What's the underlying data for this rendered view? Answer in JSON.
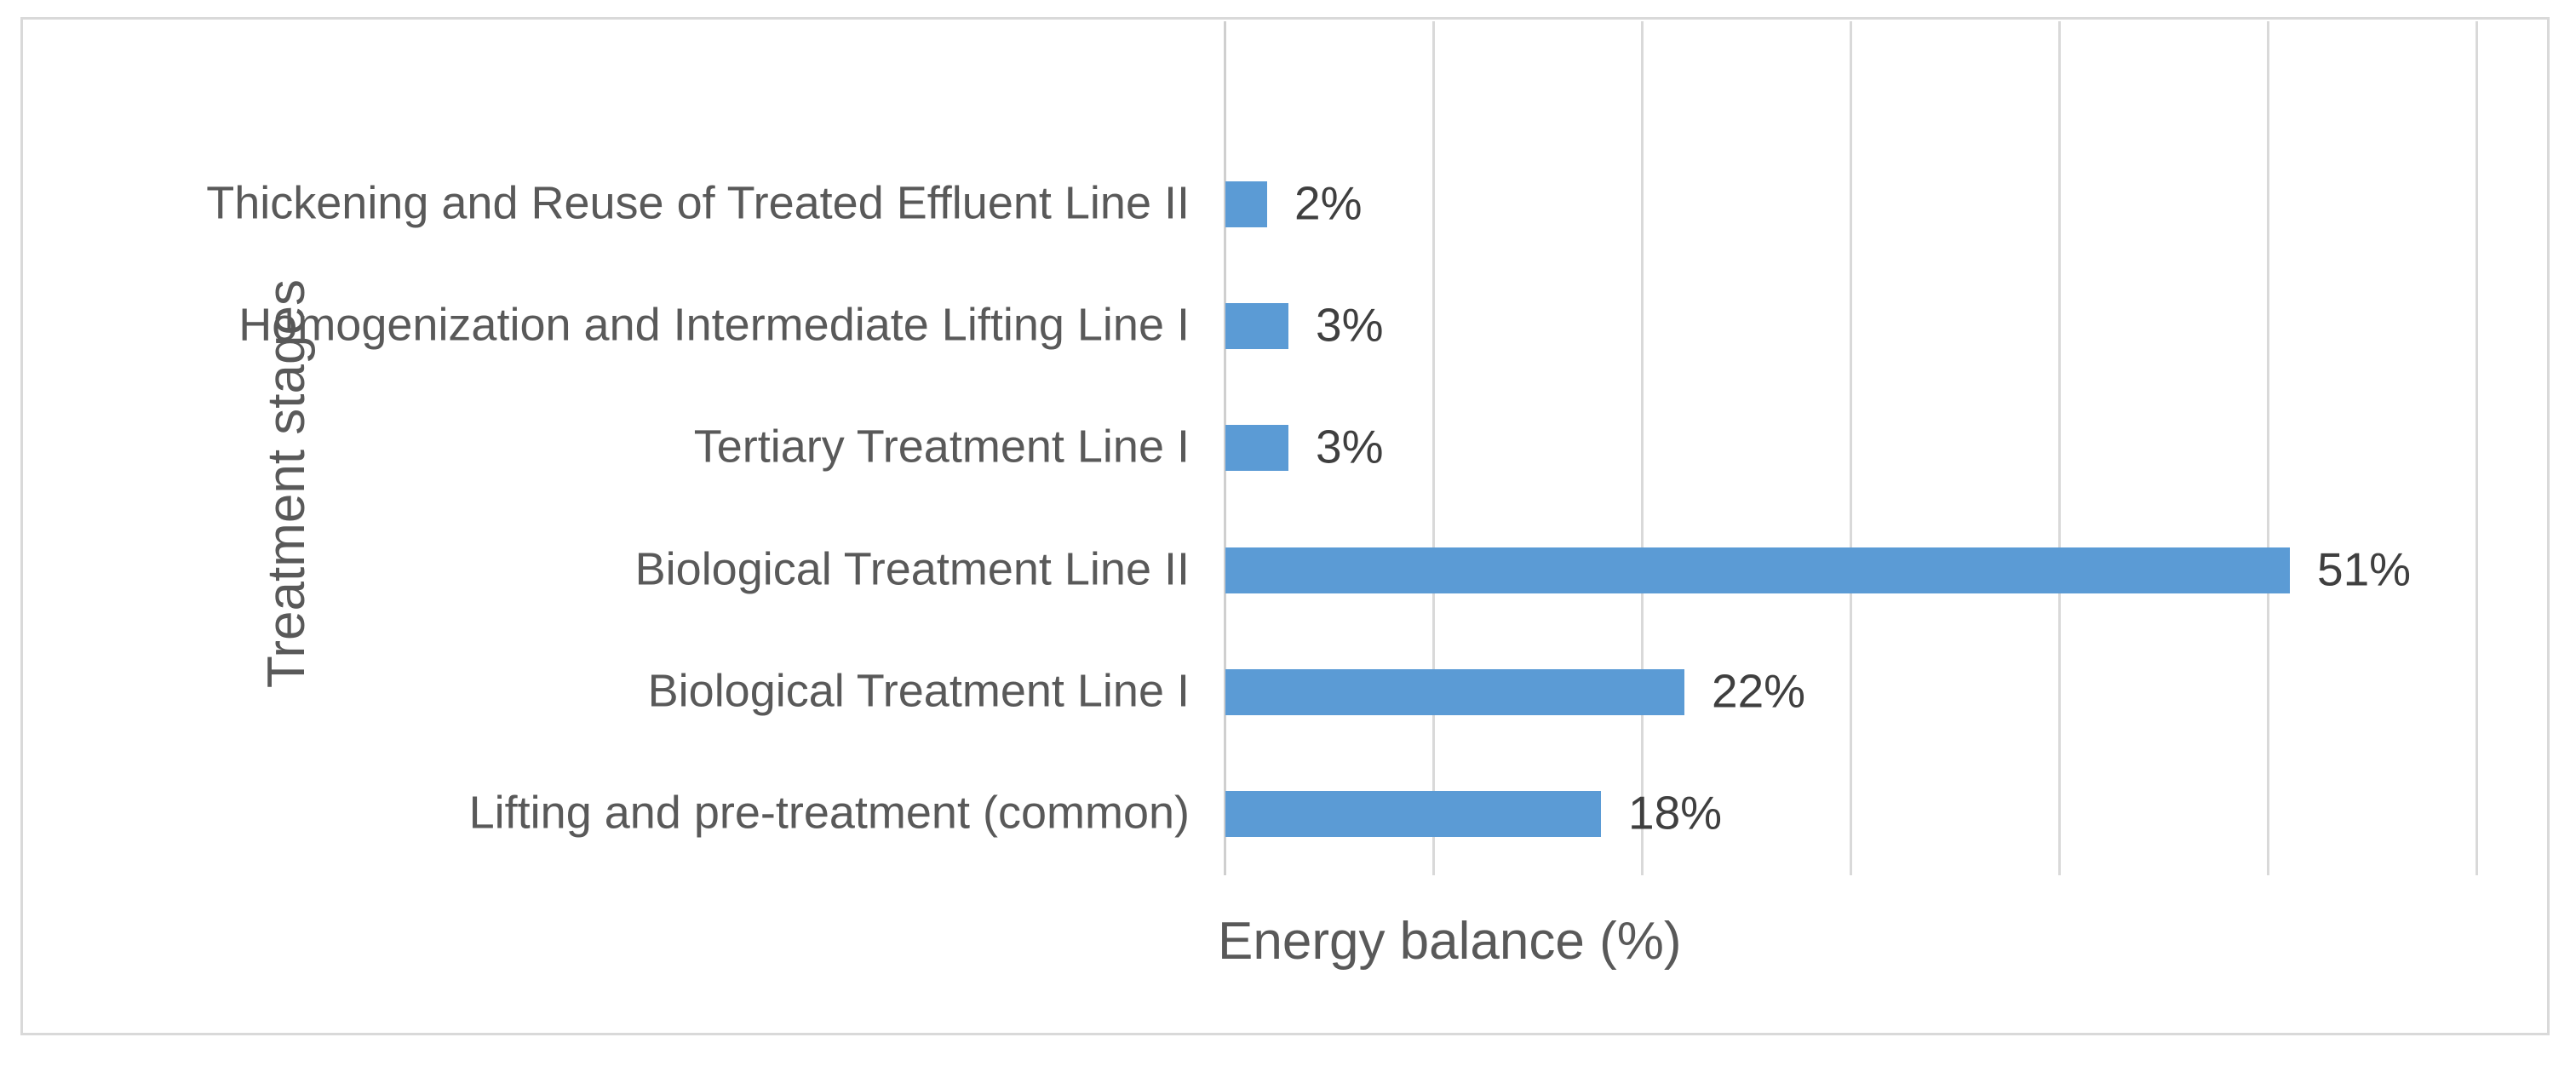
{
  "chart_data": {
    "type": "bar",
    "orientation": "horizontal",
    "title": "",
    "xlabel": "Energy balance (%)",
    "ylabel": "Treatment stages",
    "categories": [
      "Thickening and Reuse of Treated Effluent Line II",
      "Homogenization and Intermediate Lifting Line I",
      "Tertiary Treatment Line I",
      "Biological Treatment Line II",
      "Biological Treatment Line I",
      "Lifting and pre-treatment (common)"
    ],
    "values": [
      2,
      3,
      3,
      51,
      22,
      18
    ],
    "value_labels": [
      "2%",
      "3%",
      "3%",
      "51%",
      "22%",
      "18%"
    ],
    "xlim": [
      0,
      60
    ],
    "gridline_step": 10,
    "grid": true,
    "x_tick_labels_visible": false,
    "legend": "none",
    "colors": {
      "bar": "#5B9BD5",
      "gridline": "#D9D9D9",
      "border": "#D9D9D9",
      "category_label": "#595959",
      "value_label": "#3F3F3F",
      "axis_title": "#595959"
    }
  }
}
